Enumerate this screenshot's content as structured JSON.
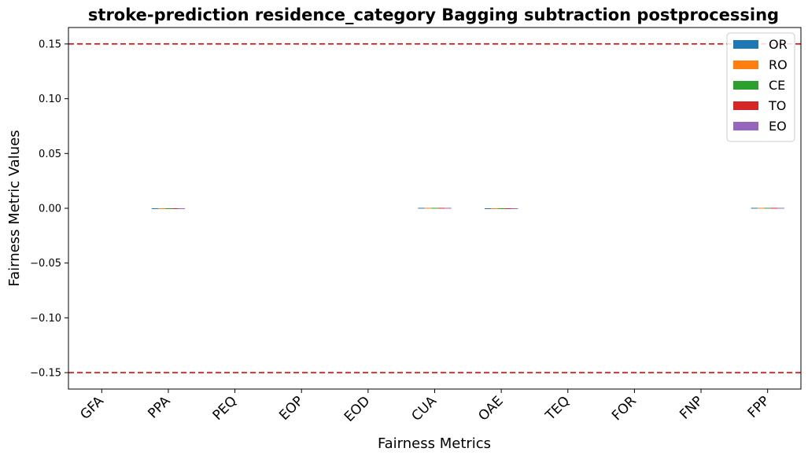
{
  "chart_data": {
    "type": "bar",
    "title": "stroke-prediction residence_category Bagging subtraction postprocessing",
    "xlabel": "Fairness Metrics",
    "ylabel": "Fairness Metric Values",
    "ylim": [
      -0.165,
      0.165
    ],
    "yticks": [
      0.15,
      0.1,
      0.05,
      0.0,
      -0.05,
      -0.1,
      -0.15
    ],
    "ytick_labels": [
      "0.15",
      "0.10",
      "0.05",
      "0.00",
      "−0.05",
      "−0.10",
      "−0.15"
    ],
    "categories": [
      "GFA",
      "PPA",
      "PEQ",
      "EOP",
      "EOD",
      "CUA",
      "OAE",
      "TEQ",
      "FOR",
      "FNP",
      "FPP"
    ],
    "series": [
      {
        "name": "OR",
        "color": "#1f77b4",
        "values": [
          0,
          -0.0004,
          0,
          0,
          0,
          0.0004,
          -0.0004,
          0,
          0,
          0,
          0.0004
        ]
      },
      {
        "name": "RO",
        "color": "#ff7f0e",
        "values": [
          0,
          -0.0004,
          0,
          0,
          0,
          0.0004,
          -0.0004,
          0,
          0,
          0,
          0.0004
        ]
      },
      {
        "name": "CE",
        "color": "#2ca02c",
        "values": [
          0,
          -0.0004,
          0,
          0,
          0,
          0.0004,
          -0.0004,
          0,
          0,
          0,
          0.0004
        ]
      },
      {
        "name": "TO",
        "color": "#d62728",
        "values": [
          0,
          -0.0004,
          0,
          0,
          0,
          0.0004,
          -0.0004,
          0,
          0,
          0,
          0.0004
        ]
      },
      {
        "name": "EO",
        "color": "#9467bd",
        "values": [
          0,
          -0.0004,
          0,
          0,
          0,
          0.0004,
          -0.0004,
          0,
          0,
          0,
          0.0004
        ]
      }
    ],
    "threshold_lines": [
      {
        "value": 0.15,
        "color": "#e31a1c",
        "style": "dashed"
      },
      {
        "value": -0.15,
        "color": "#e31a1c",
        "style": "dashed"
      }
    ],
    "legend_position": "top-right",
    "grid": false
  }
}
